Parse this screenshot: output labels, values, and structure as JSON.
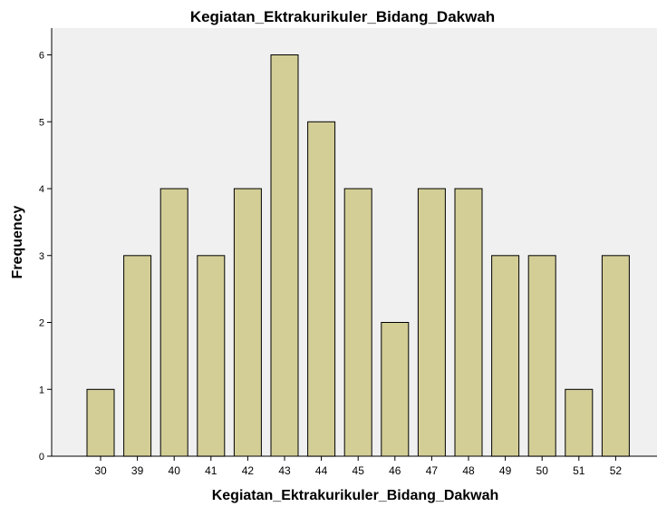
{
  "chart_data": {
    "type": "bar",
    "title": "Kegiatan_Ektrakurikuler_Bidang_Dakwah",
    "xlabel": "Kegiatan_Ektrakurikuler_Bidang_Dakwah",
    "ylabel": "Frequency",
    "categories": [
      "30",
      "39",
      "40",
      "41",
      "42",
      "43",
      "44",
      "45",
      "46",
      "47",
      "48",
      "49",
      "50",
      "51",
      "52"
    ],
    "values": [
      1,
      3,
      4,
      3,
      4,
      6,
      5,
      4,
      2,
      4,
      4,
      3,
      3,
      1,
      3
    ],
    "yticks": [
      "0",
      "1",
      "2",
      "3",
      "4",
      "5",
      "6"
    ],
    "ylim": [
      0,
      6.4
    ],
    "grid": false,
    "colors": {
      "bar_fill": "#d3ce96",
      "bar_stroke": "#000000",
      "plot_background": "#f0f0f0",
      "page_background": "#ffffff"
    }
  }
}
